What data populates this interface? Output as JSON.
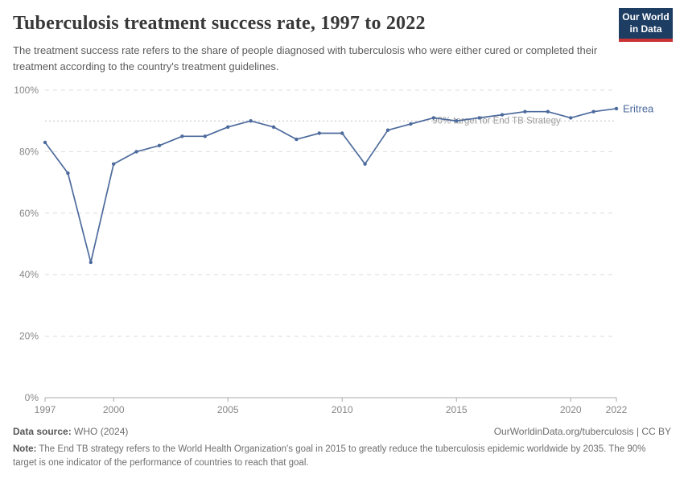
{
  "header": {
    "title": "Tuberculosis treatment success rate, 1997 to 2022",
    "subtitle": "The treatment success rate refers to the share of people diagnosed with tuberculosis who were either cured or completed their treatment according to the country's treatment guidelines."
  },
  "logo": {
    "line1": "Our World",
    "line2": "in Data"
  },
  "chart_data": {
    "type": "line",
    "title": "Tuberculosis treatment success rate, 1997 to 2022",
    "xlabel": "",
    "ylabel": "",
    "xlim": [
      1997,
      2022
    ],
    "ylim": [
      0,
      100
    ],
    "grid": "horizontal-dashed",
    "legend_position": "end-of-line-label",
    "x": [
      1997,
      1998,
      1999,
      2000,
      2001,
      2002,
      2003,
      2004,
      2005,
      2006,
      2007,
      2008,
      2009,
      2010,
      2011,
      2012,
      2013,
      2014,
      2015,
      2016,
      2017,
      2018,
      2019,
      2020,
      2021,
      2022
    ],
    "series": [
      {
        "name": "Eritrea",
        "color": "#4c6a9c",
        "values": [
          83,
          73,
          44,
          76,
          80,
          82,
          85,
          85,
          88,
          90,
          88,
          84,
          86,
          86,
          76,
          87,
          89,
          91,
          90,
          91,
          92,
          93,
          93,
          91,
          93,
          94
        ]
      }
    ],
    "x_ticks": [
      {
        "value": 1997,
        "label": "1997"
      },
      {
        "value": 2000,
        "label": "2000"
      },
      {
        "value": 2005,
        "label": "2005"
      },
      {
        "value": 2010,
        "label": "2010"
      },
      {
        "value": 2015,
        "label": "2015"
      },
      {
        "value": 2020,
        "label": "2020"
      },
      {
        "value": 2022,
        "label": "2022"
      }
    ],
    "y_ticks": [
      {
        "value": 0,
        "label": "0%"
      },
      {
        "value": 20,
        "label": "20%"
      },
      {
        "value": 40,
        "label": "40%"
      },
      {
        "value": 60,
        "label": "60%"
      },
      {
        "value": 80,
        "label": "80%"
      },
      {
        "value": 100,
        "label": "100%"
      }
    ],
    "target_line": {
      "value": 90,
      "label": "90% target for End TB Strategy"
    }
  },
  "colors": {
    "line": "#4c6a9c",
    "grid": "#dcdcdc",
    "axis": "#a9a9a9",
    "target_line": "#c4c4c4",
    "logo_bg": "#1d3d63",
    "logo_bar": "#cb3434"
  },
  "footer": {
    "datasource_label": "Data source:",
    "datasource_value": "WHO (2024)",
    "link": "OurWorldinData.org/tuberculosis | CC BY",
    "note_label": "Note:",
    "note_text": "The End TB strategy refers to the World Health Organization's goal in 2015 to greatly reduce the tuberculosis epidemic worldwide by 2035. The 90% target is one indicator of the performance of countries to reach that goal."
  }
}
